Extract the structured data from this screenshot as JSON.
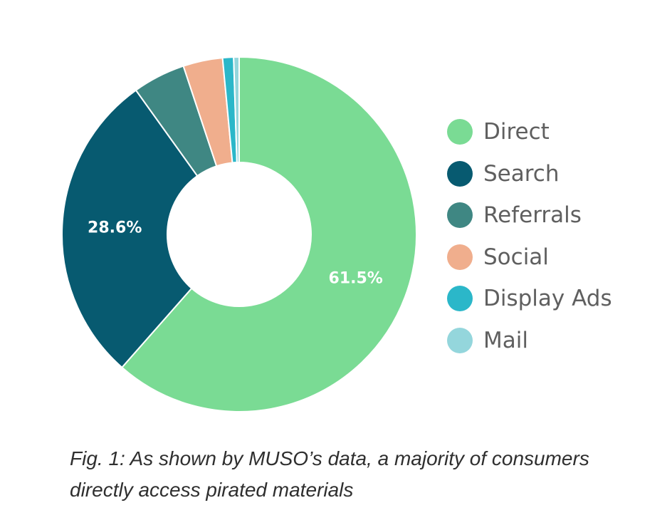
{
  "chart_data": {
    "type": "pie",
    "variant": "donut",
    "title": "",
    "categories": [
      "Direct",
      "Search",
      "Referrals",
      "Social",
      "Display Ads",
      "Mail"
    ],
    "values": [
      61.5,
      28.6,
      4.8,
      3.6,
      1.0,
      0.5
    ],
    "data_labels": [
      "61.5%",
      "28.6%",
      "",
      "",
      "",
      ""
    ],
    "colors": [
      "#7ADB94",
      "#075A70",
      "#3F8783",
      "#F0AE8D",
      "#2BB7C9",
      "#94D6DC"
    ],
    "legend_position": "right",
    "caption": "Fig. 1: As shown by MUSO’s data, a majority of consumers directly access pirated materials"
  }
}
